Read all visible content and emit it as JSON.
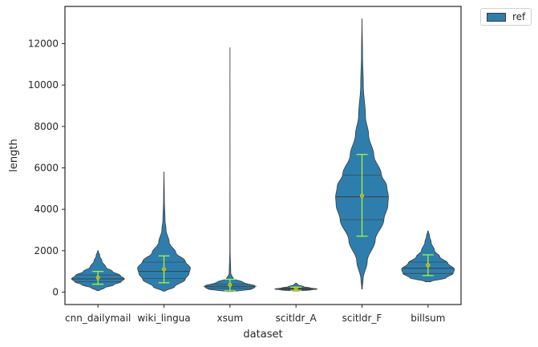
{
  "chart_data": {
    "type": "violin",
    "title": "",
    "xlabel": "dataset",
    "ylabel": "length",
    "ylim": [
      -600,
      13800
    ],
    "yticks": [
      0,
      2000,
      4000,
      6000,
      8000,
      10000,
      12000
    ],
    "ytick_labels": [
      "0",
      "2000",
      "4000",
      "6000",
      "8000",
      "10000",
      "12000"
    ],
    "categories": [
      "cnn_dailymail",
      "wiki_lingua",
      "xsum",
      "scitldr_A",
      "scitldr_F",
      "billsum"
    ],
    "series": [
      {
        "name": "ref",
        "color": "#2e7ead",
        "violins": [
          {
            "min": 80,
            "max": 2000,
            "q1": 500,
            "median": 640,
            "q3": 830,
            "mean": 700,
            "sd_low": 380,
            "sd_high": 1000,
            "density": [
              [
                80,
                0.05
              ],
              [
                200,
                0.25
              ],
              [
                350,
                0.6
              ],
              [
                500,
                0.88
              ],
              [
                640,
                1.0
              ],
              [
                800,
                0.85
              ],
              [
                1000,
                0.55
              ],
              [
                1200,
                0.3
              ],
              [
                1500,
                0.15
              ],
              [
                1750,
                0.07
              ],
              [
                2000,
                0.01
              ]
            ]
          },
          {
            "min": 50,
            "max": 5800,
            "q1": 650,
            "median": 1000,
            "q3": 1450,
            "mean": 1100,
            "sd_low": 450,
            "sd_high": 1750,
            "density": [
              [
                50,
                0.05
              ],
              [
                250,
                0.4
              ],
              [
                600,
                0.8
              ],
              [
                900,
                0.95
              ],
              [
                1150,
                1.0
              ],
              [
                1500,
                0.8
              ],
              [
                1900,
                0.45
              ],
              [
                2400,
                0.2
              ],
              [
                3000,
                0.08
              ],
              [
                3500,
                0.04
              ],
              [
                4500,
                0.015
              ],
              [
                5800,
                0.003
              ]
            ]
          },
          {
            "min": 30,
            "max": 11800,
            "q1": 200,
            "median": 280,
            "q3": 380,
            "mean": 350,
            "sd_low": 60,
            "sd_high": 620,
            "density": [
              [
                30,
                0.08
              ],
              [
                150,
                0.85
              ],
              [
                280,
                1.0
              ],
              [
                450,
                0.55
              ],
              [
                650,
                0.12
              ],
              [
                900,
                0.03
              ],
              [
                2000,
                0.007
              ],
              [
                6000,
                0.002
              ],
              [
                11800,
                0.001
              ]
            ]
          },
          {
            "min": 60,
            "max": 430,
            "q1": 110,
            "median": 150,
            "q3": 190,
            "mean": 170,
            "sd_low": 90,
            "sd_high": 240,
            "density": [
              [
                60,
                0.1
              ],
              [
                100,
                0.55
              ],
              [
                150,
                0.8
              ],
              [
                200,
                0.55
              ],
              [
                260,
                0.3
              ],
              [
                350,
                0.08
              ],
              [
                430,
                0.02
              ]
            ]
          },
          {
            "min": 150,
            "max": 13200,
            "q1": 3500,
            "median": 4600,
            "q3": 5650,
            "mean": 4650,
            "sd_low": 2700,
            "sd_high": 6650,
            "density": [
              [
                150,
                0.01
              ],
              [
                600,
                0.04
              ],
              [
                1500,
                0.2
              ],
              [
                2500,
                0.5
              ],
              [
                3500,
                0.83
              ],
              [
                4200,
                0.98
              ],
              [
                4600,
                1.0
              ],
              [
                5100,
                0.94
              ],
              [
                5700,
                0.73
              ],
              [
                6600,
                0.45
              ],
              [
                7600,
                0.25
              ],
              [
                8500,
                0.13
              ],
              [
                10000,
                0.05
              ],
              [
                11500,
                0.02
              ],
              [
                13200,
                0.002
              ]
            ]
          },
          {
            "min": 500,
            "max": 2950,
            "q1": 900,
            "median": 1150,
            "q3": 1450,
            "mean": 1300,
            "sd_low": 800,
            "sd_high": 1800,
            "density": [
              [
                500,
                0.1
              ],
              [
                700,
                0.7
              ],
              [
                900,
                0.95
              ],
              [
                1100,
                1.0
              ],
              [
                1400,
                0.75
              ],
              [
                1700,
                0.45
              ],
              [
                2000,
                0.25
              ],
              [
                2400,
                0.12
              ],
              [
                2700,
                0.06
              ],
              [
                2950,
                0.01
              ]
            ]
          }
        ]
      }
    ],
    "legend": {
      "position": "outside-top-right",
      "entries": [
        "ref"
      ]
    },
    "colors": {
      "violin": "#2e7ead",
      "errorbar": "#adff2f",
      "mean_marker": "#c8a80a",
      "outline": "#3d3d3d"
    },
    "grid": false
  }
}
